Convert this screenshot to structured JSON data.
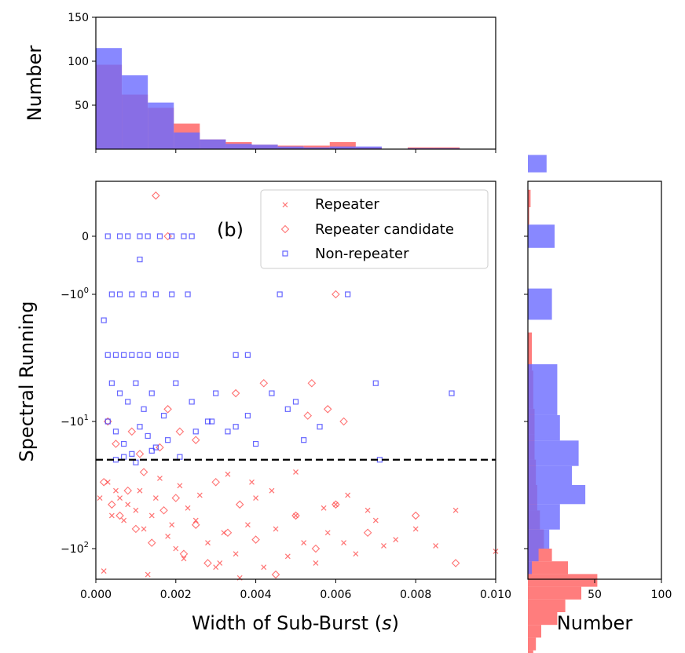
{
  "chart_data": [
    {
      "panel": "top-histogram",
      "type": "bar",
      "ylabel": "Number",
      "ylim": [
        0,
        150
      ],
      "y_ticks": [
        "50",
        "100",
        "150"
      ],
      "bin_edges": [
        0.0,
        0.00065,
        0.0013,
        0.00195,
        0.0026,
        0.00325,
        0.0039,
        0.00455,
        0.0052,
        0.00585,
        0.0065,
        0.00715,
        0.0078,
        0.00845,
        0.0091,
        0.00975
      ],
      "series": [
        {
          "name": "Repeater",
          "color": "#ff6666",
          "values": [
            96,
            62,
            47,
            29,
            11,
            8,
            5,
            4,
            4,
            8,
            2,
            0,
            2,
            2,
            0
          ]
        },
        {
          "name": "Non-repeater",
          "color": "#6a6aff",
          "values": [
            115,
            84,
            53,
            19,
            11,
            6,
            5,
            3,
            2,
            3,
            3,
            0,
            1,
            1,
            0
          ]
        }
      ]
    },
    {
      "panel": "scatter",
      "type": "scatter",
      "panel_tag": "(b)",
      "xlabel_main": "Width of Sub-Burst (",
      "xlabel_var": "s",
      "xlabel_end": ")",
      "ylabel": "Spectral Running",
      "xlim": [
        0,
        0.01
      ],
      "x_ticks": [
        "0.000",
        "0.002",
        "0.004",
        "0.006",
        "0.008",
        "0.010"
      ],
      "y_ticks": [
        {
          "label": "0"
        },
        {
          "label": "−10",
          "sup": "0"
        },
        {
          "label": "−10",
          "sup": "1"
        },
        {
          "label": "−10",
          "sup": "2"
        }
      ],
      "threshold": -20,
      "legend": {
        "position": "top-right",
        "entries": [
          {
            "label": "Repeater",
            "marker": "x",
            "color": "#ff4444"
          },
          {
            "label": "Repeater candidate",
            "marker": "diamond",
            "color": "#ff4444"
          },
          {
            "label": "Non-repeater",
            "marker": "square",
            "color": "#3333ff"
          }
        ]
      },
      "series": [
        {
          "name": "Repeater",
          "marker": "x",
          "color": "#ff4444",
          "points": [
            [
              0.0003,
              -30
            ],
            [
              0.0005,
              -35
            ],
            [
              0.0006,
              -40
            ],
            [
              0.0008,
              -45
            ],
            [
              0.0004,
              -55
            ],
            [
              0.0007,
              -60
            ],
            [
              0.001,
              -50
            ],
            [
              0.0012,
              -70
            ],
            [
              0.0015,
              -40
            ],
            [
              0.0018,
              -80
            ],
            [
              0.002,
              -100
            ],
            [
              0.0022,
              -120
            ],
            [
              0.0025,
              -60
            ],
            [
              0.0028,
              -90
            ],
            [
              0.003,
              -140
            ],
            [
              0.0032,
              -75
            ],
            [
              0.0035,
              -110
            ],
            [
              0.0038,
              -65
            ],
            [
              0.004,
              -40
            ],
            [
              0.0045,
              -70
            ],
            [
              0.005,
              -55
            ],
            [
              0.0055,
              -130
            ],
            [
              0.006,
              -45
            ],
            [
              0.0062,
              -90
            ],
            [
              0.0065,
              -110
            ],
            [
              0.007,
              -60
            ],
            [
              0.0075,
              -85
            ],
            [
              0.008,
              -70
            ],
            [
              0.0085,
              -95
            ],
            [
              0.009,
              -50
            ],
            [
              0.01,
              -105
            ],
            [
              0.0002,
              -150
            ],
            [
              0.0004,
              -180
            ],
            [
              0.0009,
              -200
            ],
            [
              0.0013,
              -160
            ],
            [
              0.0017,
              -220
            ],
            [
              0.0024,
              -250
            ],
            [
              0.0027,
              -190
            ],
            [
              0.0031,
              -130
            ],
            [
              0.0036,
              -170
            ],
            [
              0.0042,
              -140
            ],
            [
              0.0048,
              -115
            ],
            [
              0.0052,
              -90
            ],
            [
              0.0058,
              -75
            ],
            [
              0.0001,
              -40
            ],
            [
              0.0011,
              -35
            ],
            [
              0.0016,
              -28
            ],
            [
              0.0021,
              -32
            ],
            [
              0.0026,
              -38
            ],
            [
              0.0033,
              -26
            ],
            [
              0.0039,
              -30
            ],
            [
              0.0044,
              -35
            ],
            [
              0.005,
              -25
            ],
            [
              0.0057,
              -48
            ],
            [
              0.0063,
              -38
            ],
            [
              0.0072,
              -95
            ],
            [
              0.0068,
              -50
            ],
            [
              0.0014,
              -55
            ],
            [
              0.0019,
              -65
            ],
            [
              0.0023,
              -48
            ]
          ]
        },
        {
          "name": "Repeater candidate",
          "marker": "diamond",
          "color": "#ff4444",
          "points": [
            [
              0.0002,
              -30
            ],
            [
              0.0004,
              -45
            ],
            [
              0.0006,
              -55
            ],
            [
              0.0008,
              -35
            ],
            [
              0.001,
              -70
            ],
            [
              0.0012,
              -25
            ],
            [
              0.0014,
              -90
            ],
            [
              0.0017,
              -50
            ],
            [
              0.002,
              -40
            ],
            [
              0.0022,
              -110
            ],
            [
              0.0025,
              -65
            ],
            [
              0.0028,
              -130
            ],
            [
              0.003,
              -30
            ],
            [
              0.0033,
              -75
            ],
            [
              0.0036,
              -45
            ],
            [
              0.004,
              -85
            ],
            [
              0.0045,
              -160
            ],
            [
              0.005,
              -55
            ],
            [
              0.0055,
              -100
            ],
            [
              0.006,
              -45
            ],
            [
              0.0062,
              -10
            ],
            [
              0.0068,
              -75
            ],
            [
              0.008,
              -55
            ],
            [
              0.009,
              -130
            ],
            [
              0.0003,
              -10
            ],
            [
              0.0009,
              -12
            ],
            [
              0.0018,
              -8
            ],
            [
              0.0025,
              -14
            ],
            [
              0.0035,
              -6
            ],
            [
              0.0042,
              -5
            ],
            [
              0.0054,
              -5
            ],
            [
              0.006,
              -1
            ],
            [
              0.0007,
              -200
            ],
            [
              0.0013,
              -240
            ],
            [
              0.0019,
              -180
            ],
            [
              0.0005,
              -15
            ],
            [
              0.0011,
              -18
            ],
            [
              0.0016,
              -16
            ],
            [
              0.0021,
              -12
            ],
            [
              0.0015,
              0.7
            ],
            [
              0.0018,
              0
            ],
            [
              0.002,
              1.8
            ],
            [
              0.0053,
              -9
            ],
            [
              0.0058,
              -8
            ]
          ]
        },
        {
          "name": "Non-repeater",
          "marker": "square",
          "color": "#3333ff",
          "points": [
            [
              0.0003,
              -3
            ],
            [
              0.0005,
              -3
            ],
            [
              0.0007,
              -3
            ],
            [
              0.0009,
              -3
            ],
            [
              0.0011,
              -3
            ],
            [
              0.0013,
              -3
            ],
            [
              0.0016,
              -3
            ],
            [
              0.0018,
              -3
            ],
            [
              0.002,
              -3
            ],
            [
              0.0035,
              -3
            ],
            [
              0.0038,
              -3
            ],
            [
              0.0004,
              -1
            ],
            [
              0.0006,
              -1
            ],
            [
              0.0009,
              -1
            ],
            [
              0.0012,
              -1
            ],
            [
              0.0015,
              -1
            ],
            [
              0.0019,
              -1
            ],
            [
              0.0023,
              -1
            ],
            [
              0.0046,
              -1
            ],
            [
              0.0063,
              -1
            ],
            [
              0.0003,
              0
            ],
            [
              0.0006,
              0
            ],
            [
              0.0008,
              0
            ],
            [
              0.0011,
              0
            ],
            [
              0.0013,
              0
            ],
            [
              0.0016,
              0
            ],
            [
              0.0019,
              0
            ],
            [
              0.0022,
              0
            ],
            [
              0.0024,
              0
            ],
            [
              0.0004,
              -5
            ],
            [
              0.0006,
              -6
            ],
            [
              0.0008,
              -7
            ],
            [
              0.001,
              -5
            ],
            [
              0.0012,
              -8
            ],
            [
              0.0014,
              -6
            ],
            [
              0.0017,
              -9
            ],
            [
              0.002,
              -5
            ],
            [
              0.0024,
              -7
            ],
            [
              0.0028,
              -10
            ],
            [
              0.003,
              -6
            ],
            [
              0.0033,
              -12
            ],
            [
              0.0038,
              -9
            ],
            [
              0.004,
              -15
            ],
            [
              0.0044,
              -6
            ],
            [
              0.0048,
              -8
            ],
            [
              0.005,
              -7
            ],
            [
              0.0052,
              -14
            ],
            [
              0.0056,
              -11
            ],
            [
              0.007,
              -5
            ],
            [
              0.0089,
              -6
            ],
            [
              0.0003,
              -10
            ],
            [
              0.0005,
              -12
            ],
            [
              0.0007,
              -15
            ],
            [
              0.0009,
              -18
            ],
            [
              0.0011,
              -11
            ],
            [
              0.0013,
              -13
            ],
            [
              0.0015,
              -16
            ],
            [
              0.0018,
              -14
            ],
            [
              0.0021,
              -19
            ],
            [
              0.0025,
              -12
            ],
            [
              0.0029,
              -10
            ],
            [
              0.0035,
              -11
            ],
            [
              0.0071,
              -20
            ],
            [
              0.0005,
              -20
            ],
            [
              0.0007,
              -19
            ],
            [
              0.001,
              -21
            ],
            [
              0.0014,
              -17
            ],
            [
              0.0002,
              -1.6
            ],
            [
              0.0005,
              1.2
            ],
            [
              0.0011,
              -0.4
            ],
            [
              0.0012,
              1.8
            ],
            [
              0.0006,
              1.8
            ],
            [
              0.0003,
              1.8
            ],
            [
              0.0014,
              1.8
            ],
            [
              0.0009,
              1.8
            ]
          ]
        }
      ]
    },
    {
      "panel": "right-histogram",
      "type": "bar",
      "orientation": "horizontal",
      "xlabel": "Number",
      "xlim": [
        0,
        100
      ],
      "x_ticks": [
        "50",
        "100"
      ],
      "series": [
        {
          "name": "Repeater",
          "color": "#ff6666",
          "bins": [
            [
              -1.0,
              0.8,
              0
            ],
            [
              -0.8,
              -0.5,
              2
            ],
            [
              -0.5,
              -0.2,
              1
            ],
            [
              1.0,
              1.3,
              0
            ],
            [
              1.3,
              1.6,
              3
            ],
            [
              1.6,
              1.9,
              4
            ],
            [
              1.9,
              2.1,
              5
            ],
            [
              2.1,
              2.3,
              5
            ],
            [
              2.3,
              2.5,
              6
            ],
            [
              2.5,
              2.7,
              7
            ],
            [
              2.7,
              2.85,
              9
            ],
            [
              2.85,
              3.0,
              12
            ],
            [
              3.0,
              3.1,
              18
            ],
            [
              3.1,
              3.2,
              30
            ],
            [
              3.2,
              3.3,
              52
            ],
            [
              3.3,
              3.4,
              40
            ],
            [
              3.4,
              3.5,
              28
            ],
            [
              3.5,
              3.6,
              22
            ],
            [
              3.6,
              3.7,
              10
            ],
            [
              3.7,
              3.8,
              6
            ],
            [
              3.8,
              3.9,
              4
            ],
            [
              3.9,
              4.0,
              2
            ]
          ]
        },
        {
          "name": "Non-repeater",
          "color": "#6a6aff",
          "bins": [
            [
              -1.4,
              -1.1,
              14
            ],
            [
              -0.2,
              0.2,
              20
            ],
            [
              0.9,
              1.2,
              18
            ],
            [
              1.55,
              1.75,
              22
            ],
            [
              1.75,
              1.95,
              22
            ],
            [
              1.95,
              2.15,
              24
            ],
            [
              2.15,
              2.35,
              38
            ],
            [
              2.35,
              2.5,
              33
            ],
            [
              2.5,
              2.65,
              43
            ],
            [
              2.65,
              2.85,
              24
            ],
            [
              2.85,
              3.0,
              16
            ],
            [
              3.0,
              3.1,
              8
            ],
            [
              3.1,
              3.2,
              3
            ]
          ]
        }
      ]
    }
  ]
}
